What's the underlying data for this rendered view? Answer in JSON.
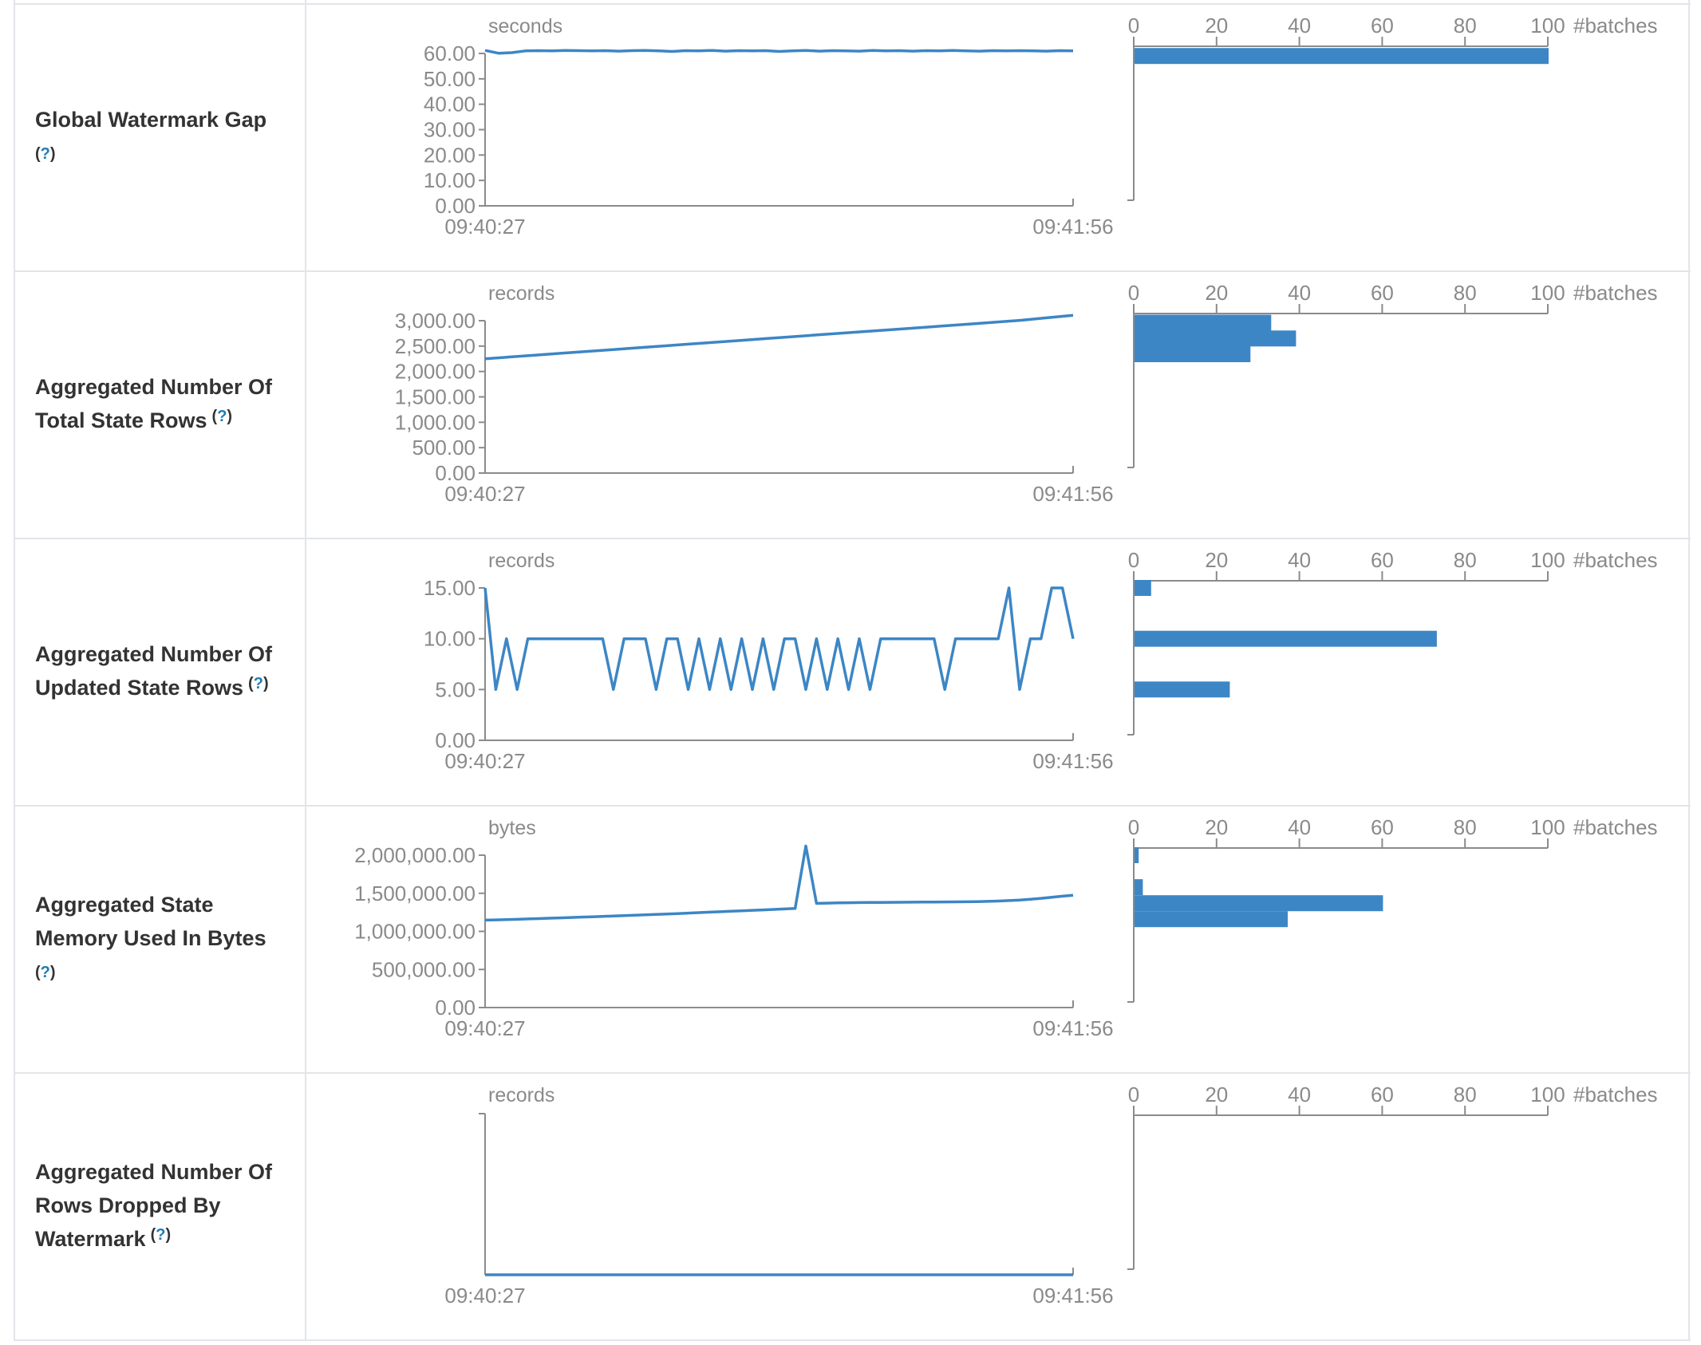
{
  "colors": {
    "accent": "#3c86c5",
    "axis_line": "#8b8b8b",
    "tick_text": "#8a8a8a",
    "label_text": "#333333",
    "help_question": "#1d7cb8",
    "border": "#e2e5e9"
  },
  "rows": [
    {
      "label_lines": [
        "Global Watermark Gap",
        "(?)"
      ]
    },
    {
      "label_lines": [
        "Aggregated Number Of",
        "Total State Rows (?)"
      ]
    },
    {
      "label_lines": [
        "Aggregated Number Of",
        "Updated State Rows (?)"
      ]
    },
    {
      "label_lines": [
        "Aggregated State",
        "Memory Used In Bytes",
        "(?)"
      ]
    },
    {
      "label_lines": [
        "Aggregated Number Of",
        "Rows Dropped By",
        "Watermark (?)"
      ]
    }
  ],
  "help": {
    "open": "(",
    "q": "?",
    "close": ")"
  },
  "chart_data": [
    {
      "name": "Global Watermark Gap",
      "timeline": {
        "type": "line",
        "unit": "seconds",
        "x_start_label": "09:40:27",
        "x_end_label": "09:41:56",
        "y_tick_labels": [
          "60.00",
          "50.00",
          "40.00",
          "30.00",
          "20.00",
          "10.00",
          "0.00"
        ],
        "y_tick_values": [
          60,
          50,
          40,
          30,
          20,
          10,
          0
        ],
        "y_max": 60,
        "values": [
          61.2,
          60.1,
          60.3,
          61.0,
          61.1,
          61.0,
          61.2,
          61.1,
          61.0,
          61.1,
          60.9,
          61.1,
          61.2,
          61.0,
          60.8,
          61.1,
          61.0,
          61.2,
          60.9,
          61.1,
          61.0,
          61.1,
          60.8,
          61.0,
          61.2,
          60.9,
          61.1,
          61.0,
          60.9,
          61.2,
          61.0,
          61.1,
          60.9,
          61.1,
          61.0,
          61.2,
          61.0,
          60.9,
          61.1,
          61.0,
          61.1,
          61.0,
          60.9,
          61.1,
          61.0
        ]
      },
      "histogram": {
        "type": "bar",
        "x_tick_labels": [
          "0",
          "20",
          "40",
          "60",
          "80",
          "100"
        ],
        "x_tick_values": [
          0,
          20,
          40,
          60,
          80,
          100
        ],
        "axis_unit_label": "#batches",
        "x_max": 100,
        "bars": [
          {
            "bin_value": 59,
            "count": 100
          }
        ]
      }
    },
    {
      "name": "Aggregated Number Of Total State Rows",
      "timeline": {
        "type": "line",
        "unit": "records",
        "x_start_label": "09:40:27",
        "x_end_label": "09:41:56",
        "y_tick_labels": [
          "3,000.00",
          "2,500.00",
          "2,000.00",
          "1,500.00",
          "1,000.00",
          "500.00",
          "0.00"
        ],
        "y_tick_values": [
          3000,
          2500,
          2000,
          1500,
          1000,
          500,
          0
        ],
        "y_max": 3000,
        "values": [
          2250,
          2287,
          2323,
          2360,
          2396,
          2432,
          2468,
          2504,
          2540,
          2576,
          2612,
          2648,
          2684,
          2720,
          2756,
          2792,
          2828,
          2864,
          2900,
          2936,
          2972,
          3010,
          3060,
          3105
        ]
      },
      "histogram": {
        "type": "bar",
        "x_tick_labels": [
          "0",
          "20",
          "40",
          "60",
          "80",
          "100"
        ],
        "x_tick_values": [
          0,
          20,
          40,
          60,
          80,
          100
        ],
        "axis_unit_label": "#batches",
        "x_max": 100,
        "bars": [
          {
            "bin_value": 2960,
            "count": 33
          },
          {
            "bin_value": 2650,
            "count": 39
          },
          {
            "bin_value": 2340,
            "count": 28
          }
        ]
      }
    },
    {
      "name": "Aggregated Number Of Updated State Rows",
      "timeline": {
        "type": "line",
        "unit": "records",
        "x_start_label": "09:40:27",
        "x_end_label": "09:41:56",
        "y_tick_labels": [
          "15.00",
          "10.00",
          "5.00",
          "0.00"
        ],
        "y_tick_values": [
          15,
          10,
          5,
          0
        ],
        "y_max": 15,
        "values": [
          15,
          5,
          10,
          5,
          10,
          10,
          10,
          10,
          10,
          10,
          10,
          10,
          5,
          10,
          10,
          10,
          5,
          10,
          10,
          5,
          10,
          5,
          10,
          5,
          10,
          5,
          10,
          5,
          10,
          10,
          5,
          10,
          5,
          10,
          5,
          10,
          5,
          10,
          10,
          10,
          10,
          10,
          10,
          5,
          10,
          10,
          10,
          10,
          10,
          15,
          5,
          10,
          10,
          15,
          15,
          10
        ]
      },
      "histogram": {
        "type": "bar",
        "x_tick_labels": [
          "0",
          "20",
          "40",
          "60",
          "80",
          "100"
        ],
        "x_tick_values": [
          0,
          20,
          40,
          60,
          80,
          100
        ],
        "axis_unit_label": "#batches",
        "x_max": 100,
        "bars": [
          {
            "bin_value": 15,
            "count": 4
          },
          {
            "bin_value": 10,
            "count": 73
          },
          {
            "bin_value": 5,
            "count": 23
          }
        ]
      }
    },
    {
      "name": "Aggregated State Memory Used In Bytes",
      "timeline": {
        "type": "line",
        "unit": "bytes",
        "x_start_label": "09:40:27",
        "x_end_label": "09:41:56",
        "y_tick_labels": [
          "2,000,000.00",
          "1,500,000.00",
          "1,000,000.00",
          "500,000.00",
          "0.00"
        ],
        "y_tick_values": [
          2000000,
          1500000,
          1000000,
          500000,
          0
        ],
        "y_max": 2000000,
        "values": [
          1148000,
          1151000,
          1154000,
          1158000,
          1163000,
          1168000,
          1173000,
          1177000,
          1182000,
          1187000,
          1192000,
          1197000,
          1202000,
          1207000,
          1212000,
          1217000,
          1222000,
          1228000,
          1234000,
          1240000,
          1246000,
          1252000,
          1258000,
          1264000,
          1270000,
          1276000,
          1282000,
          1288000,
          1294000,
          1300000,
          2120000,
          1368000,
          1371000,
          1374000,
          1376000,
          1378000,
          1379000,
          1380000,
          1381000,
          1382000,
          1383000,
          1384000,
          1385000,
          1386000,
          1387000,
          1389000,
          1391000,
          1394000,
          1398000,
          1404000,
          1412000,
          1422000,
          1434000,
          1448000,
          1462000,
          1474000
        ]
      },
      "histogram": {
        "type": "bar",
        "x_tick_labels": [
          "0",
          "20",
          "40",
          "60",
          "80",
          "100"
        ],
        "x_tick_values": [
          0,
          20,
          40,
          60,
          80,
          100
        ],
        "axis_unit_label": "#batches",
        "x_max": 100,
        "bars": [
          {
            "bin_value": 2000000,
            "count": 1
          },
          {
            "bin_value": 1580000,
            "count": 2
          },
          {
            "bin_value": 1370000,
            "count": 60
          },
          {
            "bin_value": 1160000,
            "count": 37
          }
        ]
      }
    },
    {
      "name": "Aggregated Number Of Rows Dropped By Watermark",
      "timeline": {
        "type": "line",
        "unit": "records",
        "x_start_label": "09:40:27",
        "x_end_label": "09:41:56",
        "y_tick_labels": [],
        "y_tick_values": [],
        "y_max": 1,
        "values": [
          0,
          0
        ]
      },
      "histogram": {
        "type": "bar",
        "x_tick_labels": [
          "0",
          "20",
          "40",
          "60",
          "80",
          "100"
        ],
        "x_tick_values": [
          0,
          20,
          40,
          60,
          80,
          100
        ],
        "axis_unit_label": "#batches",
        "x_max": 100,
        "bars": []
      }
    }
  ]
}
